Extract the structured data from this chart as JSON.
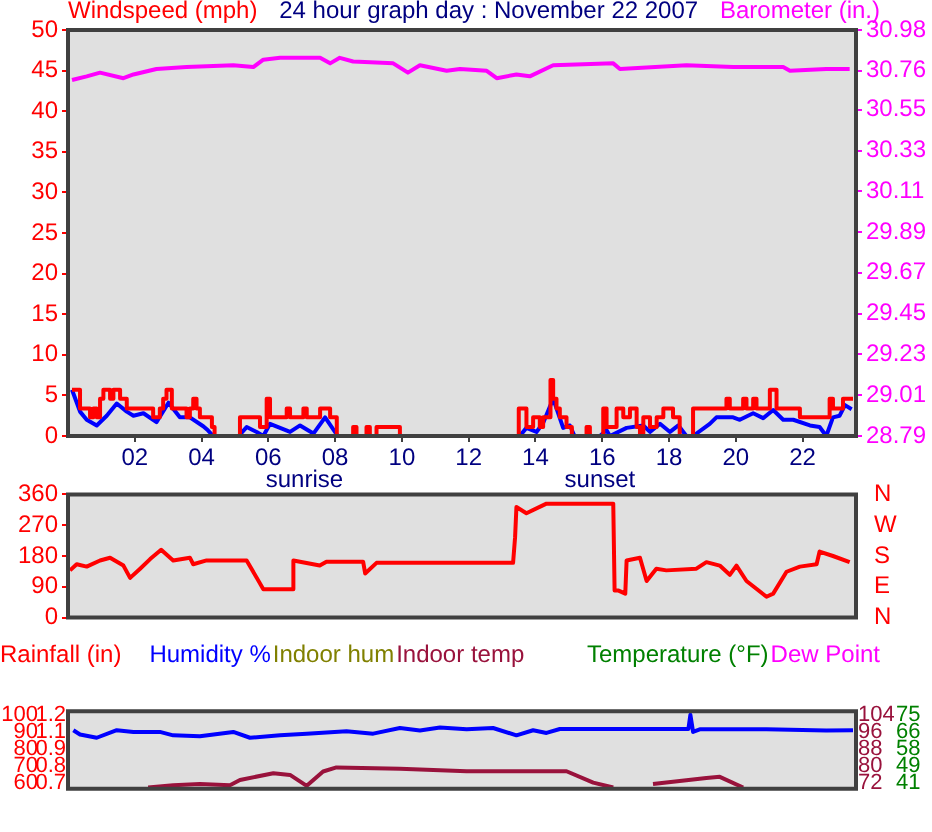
{
  "chart_data": [
    {
      "type": "line",
      "title": "24 hour graph day : November 22 2007",
      "ylabel": "Windspeed (mph)",
      "y2label": "Barometer (in.)",
      "xlim": [
        0,
        23.6
      ],
      "xticks": [
        {
          "value": 2,
          "label": "02"
        },
        {
          "value": 4,
          "label": "04"
        },
        {
          "value": 6,
          "label": "06"
        },
        {
          "value": 8,
          "label": "08"
        },
        {
          "value": 10,
          "label": "10"
        },
        {
          "value": 12,
          "label": "12"
        },
        {
          "value": 14,
          "label": "14"
        },
        {
          "value": 16,
          "label": "16"
        },
        {
          "value": 18,
          "label": "18"
        },
        {
          "value": 20,
          "label": "20"
        },
        {
          "value": 22,
          "label": "22"
        }
      ],
      "ylim": [
        0,
        50
      ],
      "yticks": [
        0,
        5,
        10,
        15,
        20,
        25,
        30,
        35,
        40,
        45,
        50
      ],
      "y2lim": [
        28.79,
        30.98
      ],
      "y2ticks": [
        28.79,
        29.01,
        29.23,
        29.45,
        29.67,
        29.89,
        30.11,
        30.33,
        30.55,
        30.76,
        30.98
      ],
      "annotations": [
        "sunrise",
        "sunset"
      ],
      "series": [
        {
          "type": "step",
          "color": "#ff0000",
          "x": [
            0.12,
            0.36,
            0.66,
            0.76,
            0.86,
            0.96,
            1.06,
            1.26,
            1.36,
            1.56,
            1.76,
            2.55,
            2.75,
            2.85,
            2.95,
            3.11,
            3.55,
            3.65,
            3.75,
            3.85,
            3.95,
            4.31,
            4.39,
            5.15,
            5.75,
            5.95,
            6.05,
            6.55,
            6.65,
            7.05,
            7.15,
            7.55,
            7.85,
            8.05,
            8.54,
            8.64,
            8.94,
            9.04,
            9.24,
            9.94,
            13.5,
            13.73,
            13.93,
            14.13,
            14.23,
            14.45,
            14.53,
            14.63,
            14.73,
            14.93,
            15.09,
            15.53,
            15.63,
            16.03,
            16.13,
            16.43,
            16.63,
            16.83,
            17.03,
            17.13,
            17.23,
            17.43,
            17.63,
            17.83,
            18.12,
            18.32,
            18.72,
            19.72,
            19.82,
            20.22,
            20.32,
            20.52,
            20.62,
            21.02,
            21.22,
            21.92,
            22.81,
            22.91,
            23.21,
            23.51
          ],
          "values": [
            5.7,
            3.4,
            2.3,
            3.4,
            2.3,
            4.6,
            5.7,
            4.6,
            5.7,
            4.6,
            3.4,
            2.3,
            3.4,
            4.6,
            5.7,
            3.4,
            2.3,
            3.4,
            4.6,
            3.4,
            2.3,
            1.1,
            0,
            2.3,
            1.1,
            4.6,
            2.3,
            3.4,
            2.3,
            3.4,
            2.3,
            3.4,
            2.3,
            0,
            1.1,
            0,
            1.1,
            0,
            1.1,
            0,
            3.4,
            1.1,
            2.3,
            1.1,
            2.3,
            6.9,
            4.6,
            3.4,
            2.3,
            1.1,
            0,
            1.1,
            0,
            3.4,
            1.1,
            3.4,
            2.3,
            3.4,
            1.1,
            0,
            2.3,
            1.1,
            2.3,
            3.4,
            2.3,
            0,
            3.4,
            4.6,
            3.4,
            4.6,
            3.4,
            4.6,
            3.4,
            5.7,
            3.4,
            2.3,
            4.6,
            3.4,
            4.6,
            4.6
          ]
        },
        {
          "type": "line",
          "color": "#0000ff",
          "x": [
            0.12,
            0.36,
            0.56,
            0.86,
            1.16,
            1.46,
            1.76,
            1.96,
            2.26,
            2.65,
            3.01,
            3.35,
            3.65,
            4.05,
            4.19,
            4.35,
            5.11,
            5.35,
            5.65,
            5.85,
            6.05,
            6.35,
            6.65,
            6.95,
            7.35,
            7.7,
            8.08,
            13.53,
            13.73,
            14.03,
            14.23,
            14.53,
            14.83,
            15.03,
            15.17,
            15.93,
            16.13,
            16.23,
            16.73,
            17.23,
            17.43,
            17.73,
            18.03,
            18.28,
            18.52,
            18.72,
            19.22,
            19.42,
            19.92,
            20.12,
            20.52,
            20.82,
            21.12,
            21.42,
            21.72,
            22.22,
            22.51,
            22.71,
            22.91,
            23.11,
            23.27,
            23.47
          ],
          "values": [
            5.7,
            3.0,
            2.0,
            1.3,
            2.5,
            4.0,
            3.0,
            2.5,
            2.8,
            1.7,
            4.1,
            2.3,
            2.3,
            1.2,
            0.7,
            0,
            0,
            1.1,
            0.5,
            0,
            1.5,
            1.0,
            0.5,
            1.3,
            0.3,
            2.3,
            0,
            0,
            1.0,
            0.5,
            1.6,
            4.6,
            1.0,
            1.3,
            0,
            0,
            0.7,
            0,
            1.0,
            1.3,
            0.5,
            1.5,
            0.5,
            1.3,
            0,
            0,
            1.5,
            2.3,
            2.3,
            2.0,
            2.8,
            2.2,
            3.2,
            2.0,
            2.0,
            1.3,
            1.1,
            0,
            2.3,
            2.5,
            3.8,
            3.3
          ]
        },
        {
          "type": "line",
          "color": "#ff00ff",
          "axis": "y2",
          "x": [
            0.12,
            0.56,
            0.96,
            1.66,
            1.96,
            2.65,
            3.55,
            4.95,
            5.55,
            5.85,
            6.35,
            7.55,
            7.85,
            8.14,
            8.54,
            9.74,
            10.18,
            10.54,
            11.34,
            11.74,
            12.54,
            12.84,
            13.43,
            13.83,
            14.53,
            16.33,
            16.53,
            18.52,
            19.92,
            21.42,
            21.62,
            22.71,
            23.41
          ],
          "values": [
            30.71,
            30.73,
            30.75,
            30.72,
            30.74,
            30.77,
            30.78,
            30.79,
            30.78,
            30.82,
            30.83,
            30.83,
            30.8,
            30.83,
            30.81,
            30.8,
            30.75,
            30.79,
            30.76,
            30.77,
            30.76,
            30.72,
            30.74,
            30.73,
            30.79,
            30.8,
            30.77,
            30.79,
            30.78,
            30.78,
            30.76,
            30.77,
            30.77
          ]
        }
      ]
    },
    {
      "type": "line",
      "xlim": [
        0,
        23.6
      ],
      "tick_labels": "y",
      "ylim": [
        0,
        360
      ],
      "yticks": [
        0,
        90,
        180,
        270,
        360
      ],
      "annotations": [
        "N",
        "E",
        "S",
        "W",
        "N"
      ],
      "series": [
        {
          "color": "#ff0000",
          "x": [
            0.06,
            0.26,
            0.56,
            0.96,
            1.26,
            1.66,
            1.86,
            2.16,
            2.46,
            2.79,
            3.15,
            3.65,
            3.75,
            4.15,
            5.35,
            5.85,
            6.71,
            6.75,
            7.54,
            7.74,
            8.84,
            8.9,
            9.24,
            13.33,
            13.39,
            13.43,
            13.73,
            14.33,
            16.33,
            16.37,
            16.49,
            16.69,
            16.73,
            17.13,
            17.33,
            17.62,
            17.92,
            18.82,
            19.12,
            19.52,
            19.82,
            20.02,
            20.32,
            20.92,
            21.12,
            21.52,
            21.92,
            22.42,
            22.51,
            22.91,
            23.41
          ],
          "values": [
            138,
            156,
            149,
            167,
            175,
            152,
            116,
            143,
            171,
            198,
            167,
            175,
            156,
            167,
            167,
            83,
            83,
            167,
            152,
            163,
            163,
            129,
            160,
            160,
            235,
            323,
            305,
            333,
            333,
            79,
            79,
            70,
            167,
            175,
            107,
            143,
            138,
            143,
            162,
            152,
            125,
            152,
            107,
            61,
            70,
            134,
            149,
            156,
            193,
            180,
            162
          ]
        }
      ]
    },
    {
      "type": "line",
      "xlim": [
        0,
        23.6
      ],
      "tick_labels": "y",
      "legend": "top",
      "ylim": [
        56.8,
        102.1
      ],
      "yticks": [
        60,
        70,
        80,
        90,
        100
      ],
      "annotations": [
        "0.7",
        "0.8",
        "0.9",
        "1.1",
        "1.2"
      ],
      "y2lim": [
        69.4,
        105.7
      ],
      "y2ticks": [
        72,
        80,
        88,
        96,
        104
      ],
      "y3lim": [
        38.3,
        76.8
      ],
      "y3ticks": [
        {
          "value": 41,
          "label": "41"
        },
        {
          "value": 49.5,
          "label": "49"
        },
        {
          "value": 58,
          "label": "58"
        },
        {
          "value": 66.5,
          "label": "66"
        },
        {
          "value": 75,
          "label": "75"
        }
      ],
      "series": [
        {
          "name": "Rainfall (in)",
          "color": "#ff0000"
        },
        {
          "name": "Humidity %",
          "color": "#0000ff",
          "x": [
            0.16,
            0.36,
            0.86,
            1.46,
            1.96,
            2.75,
            3.15,
            3.95,
            4.95,
            5.45,
            6.35,
            7.15,
            8.34,
            9.14,
            9.94,
            10.54,
            11.14,
            11.94,
            12.73,
            13.43,
            13.93,
            14.33,
            14.73,
            15.93,
            17.92,
            18.58,
            18.64,
            18.72,
            18.92,
            20.92,
            22.71,
            23.51
          ],
          "values": [
            91,
            88.5,
            86.6,
            91,
            90,
            90,
            88,
            87.5,
            90,
            86.6,
            88,
            89,
            90.4,
            89,
            92.3,
            90.8,
            92.6,
            91.5,
            92.3,
            88,
            91,
            89.4,
            91.7,
            91.7,
            91.7,
            91.7,
            100,
            90,
            91.5,
            91.5,
            90.8,
            91
          ]
        },
        {
          "name": "Indoor hum",
          "color": "#808000"
        },
        {
          "name": "Indoor temp",
          "color": "#99123c",
          "axis": "y2",
          "x": [
            2.4,
            3.15,
            3.95,
            4.85,
            5.15,
            6.15,
            6.65,
            7.15,
            7.64,
            8.04,
            9.94,
            10.94,
            11.94,
            14.93,
            15.73,
            16.33,
            16.93,
            17.52,
            18.32,
            19.12,
            19.52,
            20.22
          ],
          "values": [
            70,
            71.1,
            71.6,
            71.1,
            73.5,
            76.7,
            75.9,
            70.8,
            77.5,
            79.4,
            78.8,
            78.2,
            77.6,
            77.6,
            72.3,
            70,
            null,
            71.6,
            73,
            74.5,
            75,
            70
          ]
        },
        {
          "name": "Temperature (°F)",
          "color": "#008000",
          "axis": "y3"
        },
        {
          "name": "Dew Point",
          "color": "#ff00ff",
          "axis": "y3"
        }
      ]
    }
  ]
}
